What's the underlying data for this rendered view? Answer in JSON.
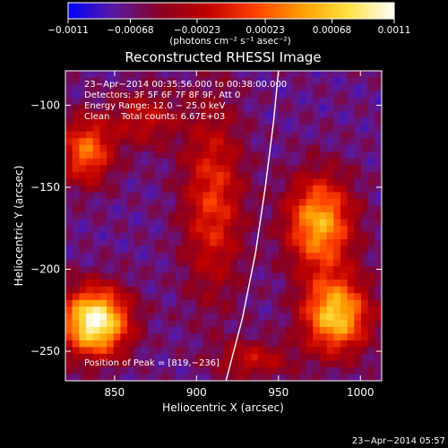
{
  "chart_data": {
    "type": "heatmap",
    "title": "Reconstructed RHESSI Image",
    "xlabel": "Heliocentric X (arcsec)",
    "ylabel": "Heliocentric Y (arcsec)",
    "xlim": [
      820,
      1013
    ],
    "ylim": [
      -268,
      -79
    ],
    "xticks": [
      850,
      900,
      950,
      1000
    ],
    "yticks": [
      -100,
      -150,
      -200,
      -250
    ],
    "xtick_labels": [
      "850",
      "900",
      "950",
      "1000"
    ],
    "ytick_labels": [
      "−100",
      "−150",
      "−200",
      "−250"
    ],
    "colorbar": {
      "range": [
        -0.0011,
        0.0011
      ],
      "ticks": [
        -0.0011,
        -0.00068,
        -0.00023,
        0.00023,
        0.00068,
        0.0011
      ],
      "tick_labels": [
        "−0.0011",
        "−0.00068",
        "−0.00023",
        "0.00023",
        "0.00068",
        "0.0011"
      ],
      "unit_label": "(photons cm⁻² s⁻¹ asec⁻²)",
      "colors": [
        "#0000ff",
        "#5a1aa0",
        "#8a0020",
        "#c00000",
        "#ff4000",
        "#ff9a00",
        "#ffe040",
        "#ffffff"
      ]
    },
    "info_lines": [
      "23−Apr−2014 00:35:56.000 to 00:38:00.000",
      "Detectors: 3F 5F 6F 7F 8F 9F, Att 0",
      "Energy Range: 12.0 − 25.0 keV",
      "Clean    Total counts: 6.67E+03"
    ],
    "peak_label": "Position of Peak = [819,−236]",
    "peak": [
      819,
      -236
    ],
    "sources": [
      {
        "x": 838,
        "y": -232,
        "sx": 14,
        "sy": 14,
        "amp": 1.0
      },
      {
        "x": 833,
        "y": -128,
        "sx": 11,
        "sy": 14,
        "amp": 0.55
      },
      {
        "x": 975,
        "y": -172,
        "sx": 14,
        "sy": 20,
        "amp": 0.7
      },
      {
        "x": 985,
        "y": -228,
        "sx": 14,
        "sy": 16,
        "amp": 0.78
      },
      {
        "x": 910,
        "y": -158,
        "sx": 13,
        "sy": 40,
        "amp": 0.42
      },
      {
        "x": 868,
        "y": -108,
        "sx": 14,
        "sy": 12,
        "amp": 0.3
      },
      {
        "x": 935,
        "y": -255,
        "sx": 16,
        "sy": 8,
        "amp": 0.3
      }
    ],
    "limb_curve": [
      [
        918,
        -268
      ],
      [
        928,
        -230
      ],
      [
        936,
        -190
      ],
      [
        942,
        -150
      ],
      [
        947,
        -110
      ],
      [
        950,
        -79
      ]
    ]
  },
  "timestamp": "23−Apr−2014 05:57"
}
